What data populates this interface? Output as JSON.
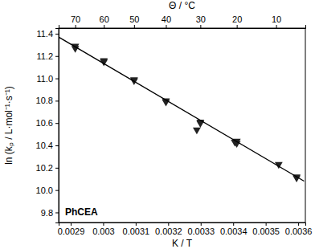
{
  "chart_data": {
    "type": "scatter",
    "x_label": "K / T",
    "x2_label": "Θ / °C",
    "y_label": "ln (kₚ / L·mol⁻¹·s⁻¹)",
    "annotation": "PhCEA",
    "xlim": [
      0.002863,
      0.003622
    ],
    "xticks": [
      0.0029,
      0.003,
      0.0031,
      0.0032,
      0.0033,
      0.0034,
      0.0035,
      0.0036
    ],
    "x2ticks": [
      {
        "value": 0.002914,
        "label": "70"
      },
      {
        "value": 0.003002,
        "label": "60"
      },
      {
        "value": 0.003095,
        "label": "50"
      },
      {
        "value": 0.003193,
        "label": "40"
      },
      {
        "value": 0.003299,
        "label": "30"
      },
      {
        "value": 0.003411,
        "label": "20"
      },
      {
        "value": 0.003532,
        "label": "10"
      }
    ],
    "ylim": [
      9.71,
      11.45
    ],
    "yticks": [
      9.8,
      {
        "value": 10,
        "label": "10.0"
      },
      10.2,
      10.4,
      10.6,
      10.8,
      {
        "value": 11,
        "label": "11.0"
      },
      11.2,
      11.4
    ],
    "grid": false,
    "series": [
      {
        "type": "scatter",
        "marker": "triangle-down",
        "color": "#222222",
        "x": [
          0.002914,
          0.002914,
          0.003002,
          0.003002,
          0.003095,
          0.003095,
          0.003193,
          0.003193,
          0.003299,
          0.003299,
          0.003288,
          0.003411,
          0.003411,
          0.003405,
          0.00354,
          0.003595,
          0.003595
        ],
        "values": [
          11.29,
          11.27,
          11.16,
          11.15,
          10.99,
          10.98,
          10.8,
          10.79,
          10.61,
          10.6,
          10.54,
          10.44,
          10.42,
          10.43,
          10.23,
          10.11,
          10.12
        ]
      },
      {
        "type": "line",
        "line_style": "solid",
        "color": "#000000",
        "x": [
          0.002863,
          0.003618
        ],
        "values": [
          11.37,
          10.08
        ]
      }
    ]
  }
}
